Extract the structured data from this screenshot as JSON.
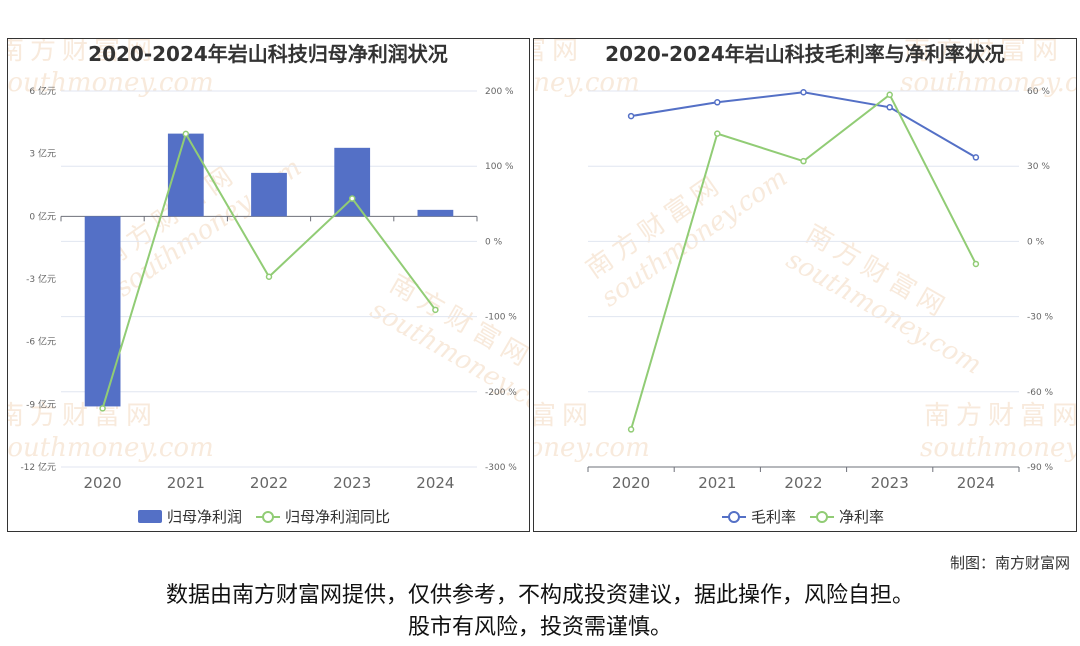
{
  "charts": [
    {
      "type": "bar+line",
      "title": "2020-2024年岩山科技归母净利润状况",
      "categories": [
        "2020",
        "2021",
        "2022",
        "2023",
        "2024"
      ],
      "left_axis": {
        "ticks": [
          "6 亿元",
          "3 亿元",
          "0 亿元",
          "-3 亿元",
          "-6 亿元",
          "-9 亿元",
          "-12 亿元"
        ],
        "ylim": [
          -12,
          6
        ]
      },
      "right_axis": {
        "ticks": [
          "200 %",
          "100 %",
          "0 %",
          "-100 %",
          "-200 %",
          "-300 %"
        ],
        "ylim": [
          -300,
          200
        ]
      },
      "series": [
        {
          "name": "归母净利润",
          "type": "bar",
          "axis": "left",
          "color": "#5470c6",
          "values": [
            -9.1,
            3.96,
            2.08,
            3.28,
            0.31
          ]
        },
        {
          "name": "归母净利润同比",
          "type": "line",
          "axis": "right",
          "color": "#91cc75",
          "values": [
            -222,
            143,
            -47,
            57,
            -91
          ]
        }
      ]
    },
    {
      "type": "line",
      "title": "2020-2024年岩山科技毛利率与净利率状况",
      "categories": [
        "2020",
        "2021",
        "2022",
        "2023",
        "2024"
      ],
      "right_axis": {
        "ticks": [
          "60 %",
          "30 %",
          "0 %",
          "-30 %",
          "-60 %",
          "-90 %"
        ],
        "ylim": [
          -90,
          60
        ]
      },
      "series": [
        {
          "name": "毛利率",
          "type": "line",
          "axis": "right",
          "color": "#5470c6",
          "values": [
            50,
            55.5,
            59.5,
            53.5,
            33.5
          ]
        },
        {
          "name": "净利率",
          "type": "line",
          "axis": "right",
          "color": "#91cc75",
          "values": [
            -75,
            43,
            32,
            58.5,
            -9
          ]
        }
      ]
    }
  ],
  "watermark": {
    "cn": "南方财富网",
    "en": "southmoney.com"
  },
  "credit": "制图：南方财富网",
  "disclaimer": {
    "line1": "数据由南方财富网提供，仅供参考，不构成投资建议，据此操作，风险自担。",
    "line2": "股市有风险，投资需谨慎。"
  },
  "colors": {
    "bar": "#5470c6",
    "green": "#91cc75",
    "blue": "#5470c6",
    "grid": "#e0e6f1",
    "watermark": "#f3d9c0"
  }
}
